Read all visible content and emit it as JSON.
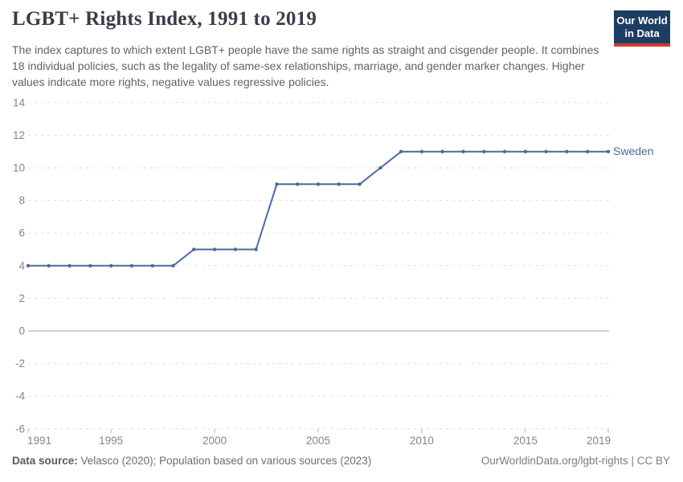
{
  "header": {
    "title": "LGBT+ Rights Index, 1991 to 2019",
    "subtitle": "The index captures to which extent LGBT+ people have the same rights as straight and cisgender people. It combines 18 individual policies, such as the legality of same-sex relationships, marriage, and gender marker changes. Higher values indicate more rights, negative values regressive policies.",
    "logo": {
      "line1": "Our World",
      "line2": "in Data",
      "bg_color": "#1d3d63",
      "accent_color": "#cf3b32"
    }
  },
  "chart_data": {
    "type": "line",
    "title": "LGBT+ Rights Index, 1991 to 2019",
    "xlabel": "",
    "ylabel": "",
    "xlim": [
      1991,
      2019
    ],
    "ylim": [
      -6,
      14
    ],
    "grid": "horizontal-dashed",
    "zero_line": true,
    "legend_position": "end-of-line-label",
    "x_ticks": [
      1991,
      1995,
      2000,
      2005,
      2010,
      2015,
      2019
    ],
    "y_ticks": [
      14,
      12,
      10,
      8,
      6,
      4,
      2,
      0,
      -2,
      -4,
      -6
    ],
    "x": [
      1991,
      1992,
      1993,
      1994,
      1995,
      1996,
      1997,
      1998,
      1999,
      2000,
      2001,
      2002,
      2003,
      2004,
      2005,
      2006,
      2007,
      2008,
      2009,
      2010,
      2011,
      2012,
      2013,
      2014,
      2015,
      2016,
      2017,
      2018,
      2019
    ],
    "series": [
      {
        "name": "Sweden",
        "color": "#4c6a9c",
        "values": [
          4,
          4,
          4,
          4,
          4,
          4,
          4,
          4,
          5,
          5,
          5,
          5,
          9,
          9,
          9,
          9,
          9,
          10,
          11,
          11,
          11,
          11,
          11,
          11,
          11,
          11,
          11,
          11,
          11
        ]
      }
    ],
    "colors": {
      "gridline": "#dedede",
      "zero_line": "#a3a3a3",
      "tick_label": "#858585",
      "tick_mark": "#b5b5b5"
    }
  },
  "footer": {
    "data_source_label": "Data source:",
    "data_source_text": " Velasco (2020); Population based on various sources (2023)",
    "attribution": "OurWorldinData.org/lgbt-rights | CC BY"
  }
}
